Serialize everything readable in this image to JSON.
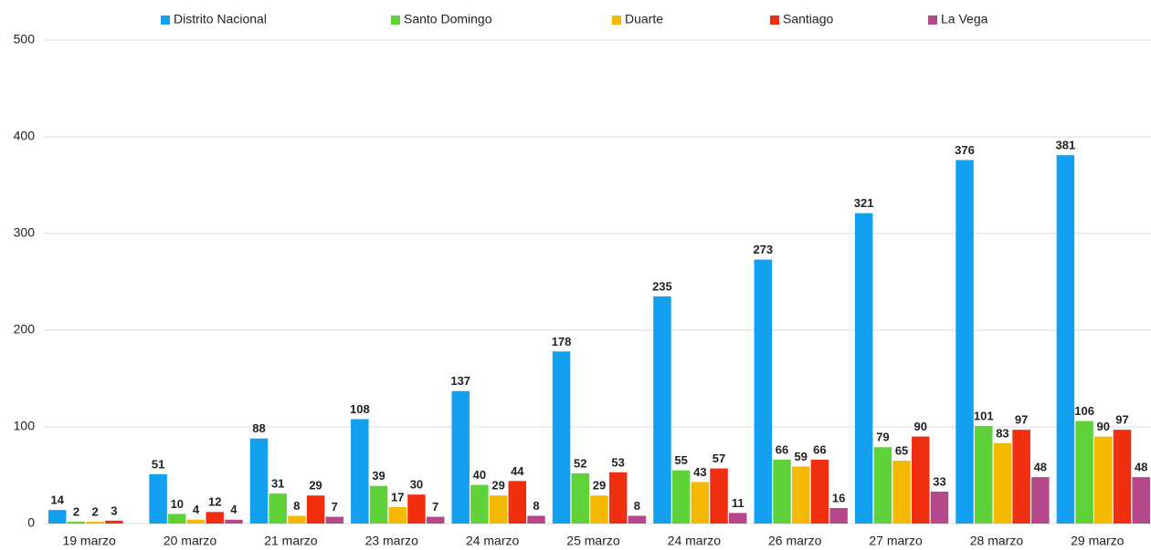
{
  "chart_data": {
    "type": "bar",
    "categories": [
      "19 marzo",
      "20 marzo",
      "21 marzo",
      "23 marzo",
      "24 marzo",
      "25 marzo",
      "24 marzo",
      "26 marzo",
      "27 marzo",
      "28 marzo",
      "29 marzo"
    ],
    "series": [
      {
        "name": "Distrito Nacional",
        "color": "#14a0f0",
        "values": [
          14,
          51,
          88,
          108,
          137,
          178,
          235,
          273,
          321,
          376,
          381
        ]
      },
      {
        "name": "Santo Domingo",
        "color": "#5fd23a",
        "values": [
          2,
          10,
          31,
          39,
          40,
          52,
          55,
          66,
          79,
          101,
          106
        ]
      },
      {
        "name": "Duarte",
        "color": "#f5b800",
        "values": [
          2,
          4,
          8,
          17,
          29,
          29,
          43,
          59,
          65,
          83,
          90
        ]
      },
      {
        "name": "Santiago",
        "color": "#f02e10",
        "values": [
          3,
          12,
          29,
          30,
          44,
          53,
          57,
          66,
          90,
          97,
          97
        ]
      },
      {
        "name": "La Vega",
        "color": "#b5478a",
        "values": [
          null,
          4,
          7,
          7,
          8,
          8,
          11,
          16,
          33,
          48,
          48
        ]
      }
    ],
    "ylim": [
      0,
      500
    ],
    "yticks": [
      0,
      100,
      200,
      300,
      400,
      500
    ],
    "grid": true,
    "legend": "top"
  }
}
